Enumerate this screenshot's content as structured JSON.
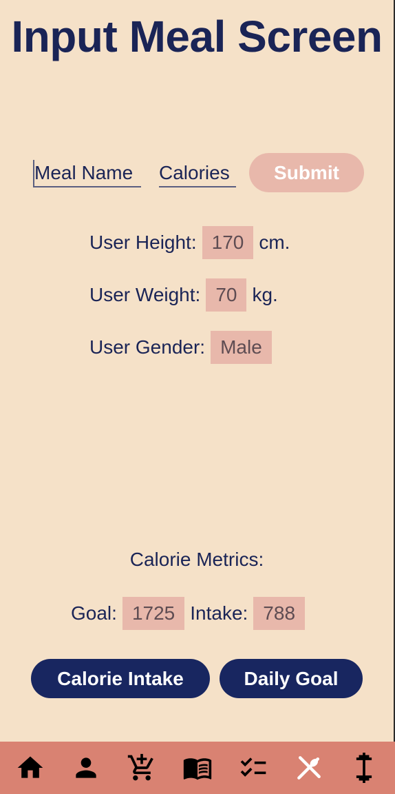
{
  "title": "Input Meal Screen",
  "form": {
    "meal_name_placeholder": "Meal Name",
    "calories_placeholder": "Calories",
    "submit_label": "Submit"
  },
  "user": {
    "height_label": "User Height:",
    "height_value": "170",
    "height_unit": "cm.",
    "weight_label": "User Weight:",
    "weight_value": "70",
    "weight_unit": "kg.",
    "gender_label": "User Gender:",
    "gender_value": "Male"
  },
  "metrics": {
    "title": "Calorie Metrics:",
    "goal_label": "Goal:",
    "goal_value": "1725",
    "intake_label": "Intake:",
    "intake_value": "788"
  },
  "buttons": {
    "calorie_intake": "Calorie Intake",
    "daily_goal": "Daily Goal"
  },
  "nav": {
    "items": [
      "home-icon",
      "person-icon",
      "add-cart-icon",
      "book-icon",
      "checklist-icon",
      "meal-icon",
      "dumbbell-icon"
    ],
    "active": "meal-icon",
    "icon_color": "#000000",
    "active_icon_color": "#ffffff"
  },
  "colors": {
    "background": "#f5e1c8",
    "navy": "#182660",
    "pink": "#e8b8ab",
    "nav_bar": "#d98272"
  }
}
